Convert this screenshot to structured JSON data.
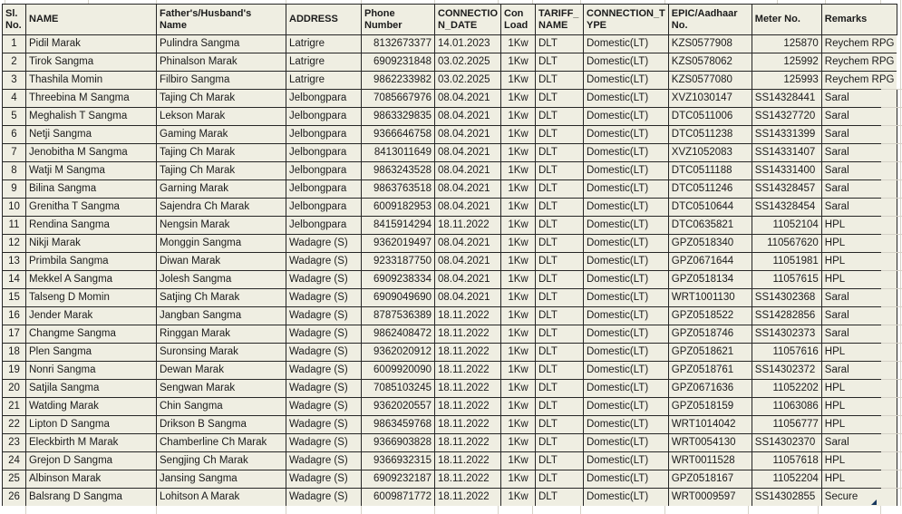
{
  "colors": {
    "cell_fill": "#efeee2",
    "grid_border": "#262626",
    "faint_gridline": "#d5d2c8",
    "text": "#1b1b1b",
    "fill_handle": "#17375e"
  },
  "table": {
    "columns": [
      {
        "key": "sl",
        "label": "Sl.\nNo.",
        "align": "center"
      },
      {
        "key": "name",
        "label": "NAME",
        "align": "left"
      },
      {
        "key": "father",
        "label": "Father's/Husband's\nName",
        "align": "left"
      },
      {
        "key": "address",
        "label": "ADDRESS",
        "align": "left"
      },
      {
        "key": "phone",
        "label": "Phone\nNumber",
        "align": "right"
      },
      {
        "key": "conn_date",
        "label": "CONNECTIO\nN_DATE",
        "align": "left"
      },
      {
        "key": "con_load",
        "label": "Con\nLoad",
        "align": "center"
      },
      {
        "key": "tariff",
        "label": "TARIFF_\nNAME",
        "align": "left"
      },
      {
        "key": "conn_type",
        "label": "CONNECTION_T\nYPE",
        "align": "left"
      },
      {
        "key": "epic",
        "label": "EPIC/Aadhaar\nNo.",
        "align": "left"
      },
      {
        "key": "meter",
        "label": "Meter No.",
        "align": "left"
      },
      {
        "key": "remarks",
        "label": "Remarks",
        "align": "left"
      }
    ],
    "rows": [
      [
        "1",
        "Pidil Marak",
        "Pulindra Sangma",
        "Latrigre",
        "8132673377",
        "14.01.2023",
        "1Kw",
        "DLT",
        "Domestic(LT)",
        "KZS0577908",
        "125870",
        "Reychem RPG"
      ],
      [
        "2",
        "Tirok Sangma",
        "Phinalson Marak",
        "Latrigre",
        "6909231848",
        "03.02.2025",
        "1Kw",
        "DLT",
        "Domestic(LT)",
        "KZS0578062",
        "125992",
        "Reychem RPG"
      ],
      [
        "3",
        "Thashila Momin",
        "Filbiro Sangma",
        "Latrigre",
        "9862233982",
        "03.02.2025",
        "1Kw",
        "DLT",
        "Domestic(LT)",
        "KZS0577080",
        "125993",
        "Reychem RPG"
      ],
      [
        "4",
        "Threebina M Sangma",
        "Tajing Ch Marak",
        "Jelbongpara",
        "7085667976",
        "08.04.2021",
        "1Kw",
        "DLT",
        "Domestic(LT)",
        "XVZ1030147",
        "SS14328441",
        "Saral"
      ],
      [
        "5",
        "Meghalish T Sangma",
        "Lekson Marak",
        "Jelbongpara",
        "9863329835",
        "08.04.2021",
        "1Kw",
        "DLT",
        "Domestic(LT)",
        "DTC0511006",
        "SS14327720",
        "Saral"
      ],
      [
        "6",
        "Netji Sangma",
        "Gaming Marak",
        "Jelbongpara",
        "9366646758",
        "08.04.2021",
        "1Kw",
        "DLT",
        "Domestic(LT)",
        "DTC0511238",
        "SS14331399",
        "Saral"
      ],
      [
        "7",
        "Jenobitha M Sangma",
        "Tajing Ch Marak",
        "Jelbongpara",
        "8413011649",
        "08.04.2021",
        "1Kw",
        "DLT",
        "Domestic(LT)",
        "XVZ1052083",
        "SS14331407",
        "Saral"
      ],
      [
        "8",
        "Watji M Sangma",
        "Tajing Ch Marak",
        "Jelbongpara",
        "9863243528",
        "08.04.2021",
        "1Kw",
        "DLT",
        "Domestic(LT)",
        "DTC0511188",
        "SS14331400",
        "Saral"
      ],
      [
        "9",
        "Bilina Sangma",
        "Garning Marak",
        "Jelbongpara",
        "9863763518",
        "08.04.2021",
        "1Kw",
        "DLT",
        "Domestic(LT)",
        "DTC0511246",
        "SS14328457",
        "Saral"
      ],
      [
        "10",
        "Grenitha T Sangma",
        "Sajendra Ch Marak",
        "Jelbongpara",
        "6009182953",
        "08.04.2021",
        "1Kw",
        "DLT",
        "Domestic(LT)",
        "DTC0510644",
        "SS14328454",
        "Saral"
      ],
      [
        "11",
        "Rendina Sangma",
        "Nengsin Marak",
        "Jelbongpara",
        "8415914294",
        "18.11.2022",
        "1Kw",
        "DLT",
        "Domestic(LT)",
        "DTC0635821",
        "11052104",
        "HPL"
      ],
      [
        "12",
        "Nikji Marak",
        "Monggin Sangma",
        "Wadagre (S)",
        "9362019497",
        "08.04.2021",
        "1Kw",
        "DLT",
        "Domestic(LT)",
        "GPZ0518340",
        "110567620",
        "HPL"
      ],
      [
        "13",
        "Primbila Sangma",
        "Diwan Marak",
        "Wadagre (S)",
        "9233187750",
        "08.04.2021",
        "1Kw",
        "DLT",
        "Domestic(LT)",
        "GPZ0671644",
        "11051981",
        "HPL"
      ],
      [
        "14",
        "Mekkel A Sangma",
        "Jolesh Sangma",
        "Wadagre (S)",
        "6909238334",
        "08.04.2021",
        "1Kw",
        "DLT",
        "Domestic(LT)",
        "GPZ0518134",
        "11057615",
        "HPL"
      ],
      [
        "15",
        "Talseng D Momin",
        "Satjing Ch Marak",
        "Wadagre (S)",
        "6909049690",
        "08.04.2021",
        "1Kw",
        "DLT",
        "Domestic(LT)",
        "WRT1001130",
        "SS14302368",
        "Saral"
      ],
      [
        "16",
        "Jender Marak",
        "Jangban Sangma",
        "Wadagre (S)",
        "8787536389",
        "18.11.2022",
        "1Kw",
        "DLT",
        "Domestic(LT)",
        "GPZ0518522",
        "SS14282856",
        "Saral"
      ],
      [
        "17",
        "Changme Sangma",
        "Ringgan Marak",
        "Wadagre (S)",
        "9862408472",
        "18.11.2022",
        "1Kw",
        "DLT",
        "Domestic(LT)",
        "GPZ0518746",
        "SS14302373",
        "Saral"
      ],
      [
        "18",
        "Plen Sangma",
        "Suronsing Marak",
        "Wadagre (S)",
        "9362020912",
        "18.11.2022",
        "1Kw",
        "DLT",
        "Domestic(LT)",
        "GPZ0518621",
        "11057616",
        "HPL"
      ],
      [
        "19",
        "Nonri Sangma",
        "Dewan Marak",
        "Wadagre (S)",
        "6009920090",
        "18.11.2022",
        "1Kw",
        "DLT",
        "Domestic(LT)",
        "GPZ0518761",
        "SS14302372",
        "Saral"
      ],
      [
        "20",
        "Satjila Sangma",
        "Sengwan Marak",
        "Wadagre (S)",
        "7085103245",
        "18.11.2022",
        "1Kw",
        "DLT",
        "Domestic(LT)",
        "GPZ0671636",
        "11052202",
        "HPL"
      ],
      [
        "21",
        "Watding Marak",
        "Chin Sangma",
        "Wadagre (S)",
        "9362020557",
        "18.11.2022",
        "1Kw",
        "DLT",
        "Domestic(LT)",
        "GPZ0518159",
        "11063086",
        "HPL"
      ],
      [
        "22",
        "Lipton D Sangma",
        "Drikson B Sangma",
        "Wadagre (S)",
        "9863459768",
        "18.11.2022",
        "1Kw",
        "DLT",
        "Domestic(LT)",
        "WRT1014042",
        "11056777",
        "HPL"
      ],
      [
        "23",
        "Eleckbirth M Marak",
        "Chamberline Ch Marak",
        "Wadagre (S)",
        "9366903828",
        "18.11.2022",
        "1Kw",
        "DLT",
        "Domestic(LT)",
        "WRT0054130",
        "SS14302370",
        "Saral"
      ],
      [
        "24",
        "Grejon D Sangma",
        "Sengjing Ch Marak",
        "Wadagre (S)",
        "9366932315",
        "18.11.2022",
        "1Kw",
        "DLT",
        "Domestic(LT)",
        "WRT0011528",
        "11057618",
        "HPL"
      ],
      [
        "25",
        "Albinson Marak",
        "Jansing Sangma",
        "Wadagre (S)",
        "6909232187",
        "18.11.2022",
        "1Kw",
        "DLT",
        "Domestic(LT)",
        "GPZ0518167",
        "11052204",
        "HPL"
      ],
      [
        "26",
        "Balsrang D Sangma",
        "Lohitson A Marak",
        "Wadagre (S)",
        "6009871772",
        "18.11.2022",
        "1Kw",
        "DLT",
        "Domestic(LT)",
        "WRT0009597",
        "SS14302855",
        "Secure"
      ]
    ]
  }
}
